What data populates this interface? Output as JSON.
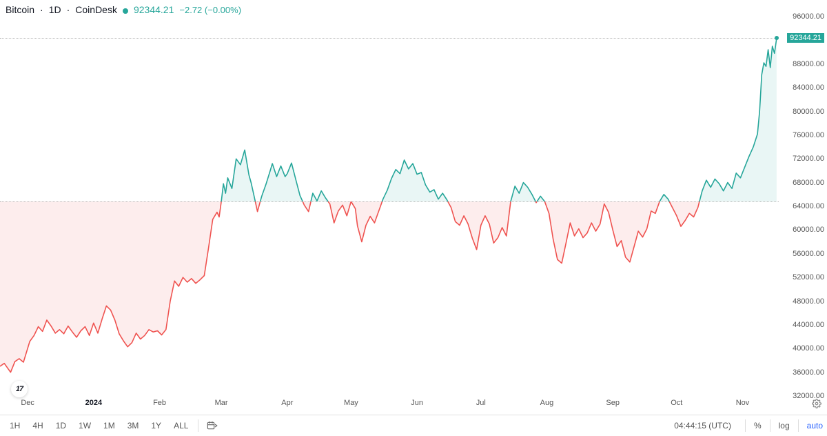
{
  "header": {
    "symbol": "Bitcoin",
    "interval": "1D",
    "source": "CoinDesk",
    "price": "92344.21",
    "change": "−2.72",
    "change_pct": "(−0.00%)"
  },
  "chart": {
    "type": "baseline-line",
    "baseline_value": 64800,
    "current_value": 92344.21,
    "ymin": 32000,
    "ymax": 96000,
    "ytick_step": 4000,
    "yticks": [
      96000,
      92000,
      88000,
      84000,
      80000,
      76000,
      72000,
      68000,
      64000,
      60000,
      56000,
      52000,
      48000,
      44000,
      40000,
      36000,
      32000
    ],
    "x_labels": [
      {
        "t": 13,
        "label": "Dec",
        "bold": false
      },
      {
        "t": 44,
        "label": "2024",
        "bold": true
      },
      {
        "t": 75,
        "label": "Feb",
        "bold": false
      },
      {
        "t": 104,
        "label": "Mar",
        "bold": false
      },
      {
        "t": 135,
        "label": "Apr",
        "bold": false
      },
      {
        "t": 165,
        "label": "May",
        "bold": false
      },
      {
        "t": 196,
        "label": "Jun",
        "bold": false
      },
      {
        "t": 226,
        "label": "Jul",
        "bold": false
      },
      {
        "t": 257,
        "label": "Aug",
        "bold": false
      },
      {
        "t": 288,
        "label": "Sep",
        "bold": false
      },
      {
        "t": 318,
        "label": "Oct",
        "bold": false
      },
      {
        "t": 349,
        "label": "Nov",
        "bold": false
      }
    ],
    "t_max": 366,
    "colors": {
      "up_line": "#26a69a",
      "up_fill": "#26a69a",
      "up_fill_opacity": 0.1,
      "down_line": "#ef5350",
      "down_fill": "#ef5350",
      "down_fill_opacity": 0.1,
      "grid": "#d1d4dc",
      "background": "#ffffff",
      "price_flag_bg": "#26a69a",
      "price_flag_text": "#ffffff",
      "dotline": "#808080"
    },
    "line_width": 1.6,
    "series": [
      [
        0,
        37000
      ],
      [
        2,
        37500
      ],
      [
        4,
        36500
      ],
      [
        5,
        36000
      ],
      [
        7,
        37800
      ],
      [
        9,
        38300
      ],
      [
        11,
        37700
      ],
      [
        14,
        41200
      ],
      [
        16,
        42200
      ],
      [
        18,
        43700
      ],
      [
        20,
        42900
      ],
      [
        22,
        44800
      ],
      [
        24,
        43800
      ],
      [
        26,
        42600
      ],
      [
        28,
        43200
      ],
      [
        30,
        42500
      ],
      [
        32,
        43800
      ],
      [
        34,
        42800
      ],
      [
        36,
        41900
      ],
      [
        38,
        43000
      ],
      [
        40,
        43700
      ],
      [
        42,
        42200
      ],
      [
        44,
        44300
      ],
      [
        46,
        42600
      ],
      [
        48,
        45000
      ],
      [
        50,
        47200
      ],
      [
        52,
        46500
      ],
      [
        54,
        44800
      ],
      [
        56,
        42500
      ],
      [
        58,
        41300
      ],
      [
        60,
        40300
      ],
      [
        62,
        41000
      ],
      [
        64,
        42600
      ],
      [
        66,
        41600
      ],
      [
        68,
        42200
      ],
      [
        70,
        43200
      ],
      [
        72,
        42800
      ],
      [
        74,
        43000
      ],
      [
        76,
        42300
      ],
      [
        78,
        43200
      ],
      [
        80,
        48000
      ],
      [
        82,
        51400
      ],
      [
        84,
        50500
      ],
      [
        86,
        52000
      ],
      [
        88,
        51200
      ],
      [
        90,
        51800
      ],
      [
        92,
        51000
      ],
      [
        94,
        51600
      ],
      [
        96,
        52300
      ],
      [
        98,
        57000
      ],
      [
        100,
        61800
      ],
      [
        102,
        63000
      ],
      [
        103,
        62200
      ],
      [
        104,
        64800
      ],
      [
        105,
        67800
      ],
      [
        106,
        66200
      ],
      [
        107,
        68800
      ],
      [
        109,
        67000
      ],
      [
        111,
        72000
      ],
      [
        113,
        71000
      ],
      [
        115,
        73500
      ],
      [
        117,
        69300
      ],
      [
        118,
        68000
      ],
      [
        119,
        66400
      ],
      [
        121,
        63100
      ],
      [
        123,
        65700
      ],
      [
        125,
        67700
      ],
      [
        127,
        70000
      ],
      [
        128,
        71200
      ],
      [
        130,
        69000
      ],
      [
        132,
        70800
      ],
      [
        134,
        69000
      ],
      [
        135,
        69500
      ],
      [
        137,
        71300
      ],
      [
        139,
        68500
      ],
      [
        141,
        65800
      ],
      [
        143,
        64200
      ],
      [
        145,
        63100
      ],
      [
        147,
        66200
      ],
      [
        149,
        64900
      ],
      [
        151,
        66600
      ],
      [
        153,
        65400
      ],
      [
        155,
        64400
      ],
      [
        157,
        61200
      ],
      [
        159,
        63200
      ],
      [
        161,
        64200
      ],
      [
        163,
        62400
      ],
      [
        165,
        64800
      ],
      [
        167,
        63600
      ],
      [
        168,
        60700
      ],
      [
        170,
        58000
      ],
      [
        172,
        60800
      ],
      [
        174,
        62300
      ],
      [
        176,
        61200
      ],
      [
        178,
        63200
      ],
      [
        180,
        65200
      ],
      [
        182,
        66700
      ],
      [
        184,
        68700
      ],
      [
        186,
        70200
      ],
      [
        188,
        69500
      ],
      [
        190,
        71800
      ],
      [
        192,
        70300
      ],
      [
        194,
        71200
      ],
      [
        196,
        69400
      ],
      [
        198,
        69700
      ],
      [
        200,
        67600
      ],
      [
        202,
        66400
      ],
      [
        204,
        66800
      ],
      [
        206,
        65200
      ],
      [
        208,
        66200
      ],
      [
        210,
        65100
      ],
      [
        212,
        63800
      ],
      [
        214,
        61400
      ],
      [
        216,
        60800
      ],
      [
        218,
        62400
      ],
      [
        220,
        61000
      ],
      [
        222,
        58600
      ],
      [
        224,
        56700
      ],
      [
        226,
        60800
      ],
      [
        228,
        62400
      ],
      [
        230,
        61000
      ],
      [
        232,
        57800
      ],
      [
        234,
        58700
      ],
      [
        236,
        60400
      ],
      [
        238,
        59000
      ],
      [
        240,
        64800
      ],
      [
        242,
        67400
      ],
      [
        244,
        66200
      ],
      [
        246,
        68000
      ],
      [
        248,
        67200
      ],
      [
        250,
        66000
      ],
      [
        252,
        64600
      ],
      [
        254,
        65700
      ],
      [
        256,
        64800
      ],
      [
        258,
        62800
      ],
      [
        260,
        58400
      ],
      [
        262,
        55000
      ],
      [
        264,
        54400
      ],
      [
        266,
        57800
      ],
      [
        268,
        61200
      ],
      [
        270,
        59000
      ],
      [
        272,
        60200
      ],
      [
        274,
        58700
      ],
      [
        276,
        59500
      ],
      [
        278,
        61200
      ],
      [
        280,
        59800
      ],
      [
        282,
        61000
      ],
      [
        284,
        64400
      ],
      [
        286,
        63000
      ],
      [
        288,
        60000
      ],
      [
        290,
        57200
      ],
      [
        292,
        58200
      ],
      [
        294,
        55400
      ],
      [
        296,
        54600
      ],
      [
        298,
        57200
      ],
      [
        300,
        59800
      ],
      [
        302,
        58800
      ],
      [
        304,
        60200
      ],
      [
        306,
        63200
      ],
      [
        308,
        62800
      ],
      [
        310,
        64800
      ],
      [
        312,
        66000
      ],
      [
        314,
        65200
      ],
      [
        316,
        63800
      ],
      [
        318,
        62400
      ],
      [
        320,
        60600
      ],
      [
        322,
        61600
      ],
      [
        324,
        62800
      ],
      [
        326,
        62200
      ],
      [
        328,
        63800
      ],
      [
        330,
        66600
      ],
      [
        332,
        68400
      ],
      [
        334,
        67200
      ],
      [
        336,
        68600
      ],
      [
        338,
        67800
      ],
      [
        340,
        66600
      ],
      [
        342,
        68000
      ],
      [
        344,
        67000
      ],
      [
        346,
        69600
      ],
      [
        348,
        68800
      ],
      [
        350,
        70600
      ],
      [
        352,
        72400
      ],
      [
        354,
        74000
      ],
      [
        356,
        76200
      ],
      [
        357,
        80000
      ],
      [
        358,
        86200
      ],
      [
        359,
        88200
      ],
      [
        360,
        87600
      ],
      [
        361,
        90400
      ],
      [
        362,
        87400
      ],
      [
        363,
        91000
      ],
      [
        364,
        89800
      ],
      [
        365,
        92344.21
      ]
    ]
  },
  "toolbar": {
    "timeframes": [
      "1H",
      "4H",
      "1D",
      "1W",
      "1M",
      "3M",
      "1Y",
      "ALL"
    ],
    "calendar_icon": "calendar-jump-icon",
    "clock": "04:44:15 (UTC)",
    "scale_buttons": [
      "%",
      "log",
      "auto"
    ],
    "auto_color": "#2962ff"
  },
  "price_flag": "92344.21"
}
